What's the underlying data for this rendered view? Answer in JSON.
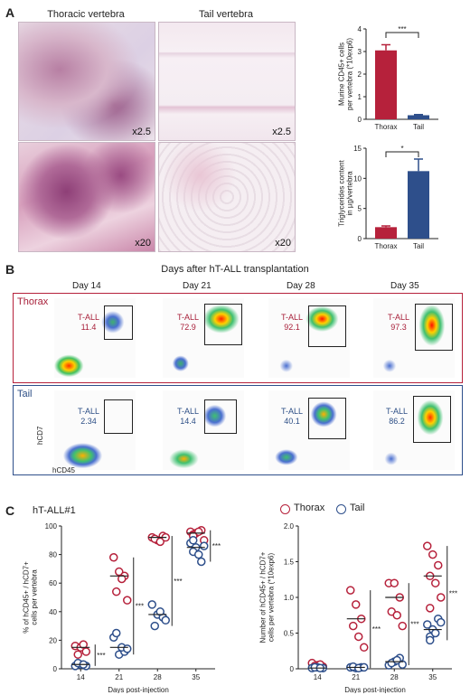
{
  "panelA": {
    "label": "A",
    "titles": {
      "thoracic": "Thoracic vertebra",
      "tail": "Tail vertebra"
    },
    "magnifications": [
      "x2.5",
      "x2.5",
      "x20",
      "x20"
    ],
    "colors": {
      "thorax": "#b6213b",
      "tail": "#2e4f8b"
    }
  },
  "panelB": {
    "label": "B",
    "title": "Days after hT-ALL transplantation",
    "days": [
      "Day 14",
      "Day 21",
      "Day 28",
      "Day 35"
    ],
    "row_labels": {
      "thorax": "Thorax",
      "tail": "Tail"
    },
    "gate_name": "T-ALL",
    "thorax_values": [
      "11.4",
      "72.9",
      "92.1",
      "97.3"
    ],
    "tail_values": [
      "2.34",
      "14.4",
      "40.1",
      "86.2"
    ],
    "y_axis": "hCD7",
    "x_axis": "hCD45"
  },
  "panelC": {
    "label": "C",
    "subtitle": "hT-ALL#1",
    "legend": {
      "thorax": "Thorax",
      "tail": "Tail"
    }
  },
  "chart_data": [
    {
      "type": "bar",
      "categories": [
        "Thorax",
        "Tail"
      ],
      "values": [
        3.05,
        0.18
      ],
      "errors": [
        0.25,
        0.03
      ],
      "ylabel": "Murine CD45+ cells per vertebra (*10exp6)",
      "ylim": [
        0,
        4
      ],
      "yticks": [
        "0",
        "1",
        "2",
        "3",
        "4"
      ],
      "significance": "***"
    },
    {
      "type": "bar",
      "categories": [
        "Thorax",
        "Tail"
      ],
      "values": [
        1.9,
        11.2
      ],
      "errors": [
        0.2,
        2.0
      ],
      "ylabel": "Triglycerides content in µg/vertebra",
      "ylim": [
        0,
        15
      ],
      "yticks": [
        "0",
        "5",
        "10",
        "15"
      ],
      "significance": "*"
    },
    {
      "type": "scatter",
      "xlabel": "Days post-injection",
      "ylabel": "% of hCD45+ / hCD7+ cells per vertebra",
      "x": [
        "14",
        "21",
        "28",
        "35"
      ],
      "ylim": [
        0,
        100
      ],
      "yticks": [
        "0",
        "20",
        "40",
        "60",
        "80",
        "100"
      ],
      "series": [
        {
          "name": "Thorax",
          "values": [
            [
              16,
              15,
              12,
              10,
              17
            ],
            [
              78,
              68,
              65,
              54,
              63,
              48
            ],
            [
              92,
              90,
              93,
              91,
              89,
              92
            ],
            [
              96,
              95,
              97,
              94,
              96,
              90,
              93
            ]
          ]
        },
        {
          "name": "Tail",
          "values": [
            [
              2,
              3,
              2,
              4,
              3
            ],
            [
              22,
              10,
              12,
              25,
              15,
              14
            ],
            [
              45,
              38,
              36,
              30,
              40,
              34
            ],
            [
              88,
              85,
              75,
              82,
              80,
              86,
              90
            ]
          ]
        }
      ],
      "significance": [
        "***",
        "***",
        "***",
        "***"
      ]
    },
    {
      "type": "scatter",
      "xlabel": "Days post-injection",
      "ylabel": "Number of hCD45+ / hCD7+ cells per vertebra (*10exp6)",
      "x": [
        "14",
        "21",
        "28",
        "35"
      ],
      "ylim": [
        0,
        2.0
      ],
      "yticks": [
        "0",
        "0.5",
        "1.0",
        "1.5",
        "2.0"
      ],
      "series": [
        {
          "name": "Thorax",
          "values": [
            [
              0.08,
              0.05,
              0.03,
              0.04,
              0.06
            ],
            [
              1.1,
              0.9,
              0.7,
              0.6,
              0.45,
              0.3
            ],
            [
              1.2,
              1.2,
              1.0,
              0.8,
              0.75,
              0.6
            ],
            [
              1.72,
              1.6,
              1.45,
              1.3,
              1.2,
              1.0,
              0.85
            ]
          ]
        },
        {
          "name": "Tail",
          "values": [
            [
              0.01,
              0.02,
              0.01,
              0.02,
              0.01
            ],
            [
              0.02,
              0.01,
              0.02,
              0.03,
              0.01,
              0.02
            ],
            [
              0.05,
              0.1,
              0.15,
              0.08,
              0.12,
              0.06
            ],
            [
              0.62,
              0.55,
              0.7,
              0.45,
              0.5,
              0.65,
              0.4
            ]
          ]
        }
      ],
      "significance": [
        "",
        "***",
        "***",
        "***"
      ]
    }
  ]
}
